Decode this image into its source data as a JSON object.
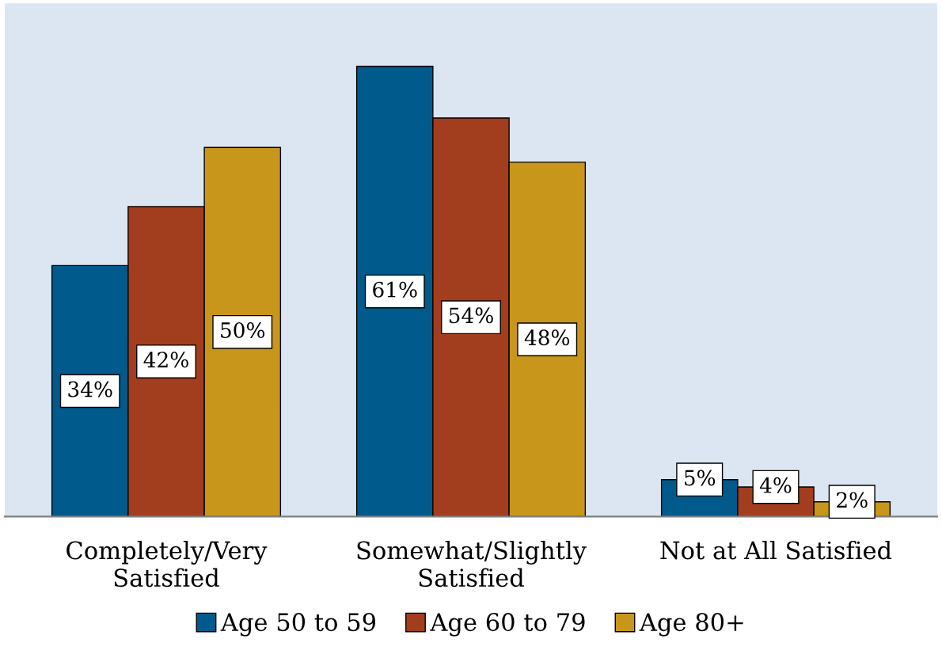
{
  "chart_data": {
    "type": "bar",
    "categories": [
      "Completely/Very\nSatisfied",
      "Somewhat/Slightly\nSatisfied",
      "Not at All Satisfied"
    ],
    "series": [
      {
        "name": "Age 50 to 59",
        "color": "#005a8c",
        "values": [
          34,
          61,
          5
        ],
        "value_labels": [
          "34%",
          "61%",
          "5%"
        ]
      },
      {
        "name": "Age 60 to 79",
        "color": "#a23e1e",
        "values": [
          42,
          54,
          4
        ],
        "value_labels": [
          "42%",
          "54%",
          "4%"
        ]
      },
      {
        "name": "Age 80+",
        "color": "#c8961a",
        "values": [
          50,
          48,
          2
        ],
        "value_labels": [
          "50%",
          "48%",
          "2%"
        ]
      }
    ],
    "grid": false,
    "legend": "bottom",
    "tick_labels": "x"
  }
}
